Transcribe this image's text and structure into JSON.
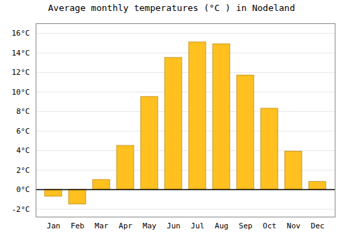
{
  "chart_data": {
    "type": "bar",
    "title": "Average monthly temperatures (°C ) in Nodeland",
    "categories": [
      "Jan",
      "Feb",
      "Mar",
      "Apr",
      "May",
      "Jun",
      "Jul",
      "Aug",
      "Sep",
      "Oct",
      "Nov",
      "Dec"
    ],
    "values": [
      -0.7,
      -1.5,
      1.0,
      4.5,
      9.5,
      13.5,
      15.1,
      14.9,
      11.7,
      8.3,
      3.9,
      0.8
    ],
    "color": "#FFC020",
    "ylim": [
      -2.8,
      17.0
    ],
    "yticks": [
      {
        "value": -2,
        "label": "-2°C"
      },
      {
        "value": 0,
        "label": "0°C"
      },
      {
        "value": 2,
        "label": "2°C"
      },
      {
        "value": 4,
        "label": "4°C"
      },
      {
        "value": 6,
        "label": "6°C"
      },
      {
        "value": 8,
        "label": "8°C"
      },
      {
        "value": 10,
        "label": "10°C"
      },
      {
        "value": 12,
        "label": "12°C"
      },
      {
        "value": 14,
        "label": "14°C"
      },
      {
        "value": 16,
        "label": "16°C"
      }
    ],
    "grid": true
  }
}
